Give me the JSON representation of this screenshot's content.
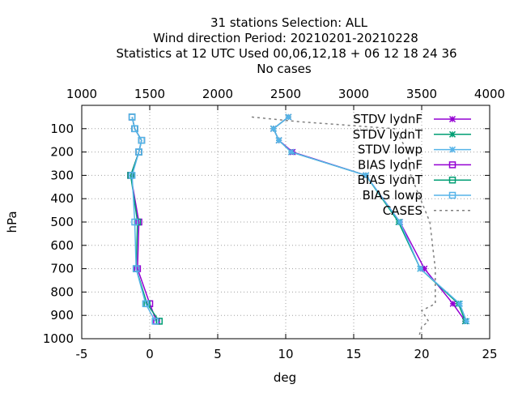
{
  "chart_data": {
    "type": "line",
    "title_lines": [
      "31 stations Selection: ALL",
      "Wind direction  Period: 20210201-20210228",
      "Statistics at 12 UTC  Used  00,06,12,18 + 06 12 18 24 36",
      "No cases"
    ],
    "xlabel": "deg",
    "ylabel": "hPa",
    "xlim": [
      -5,
      25
    ],
    "ylim": [
      1000,
      0
    ],
    "x2lim": [
      1000,
      4000
    ],
    "xticks": [
      "-5",
      "0",
      "5",
      "10",
      "15",
      "20",
      "25"
    ],
    "x2ticks": [
      "1000",
      "1500",
      "2000",
      "2500",
      "3000",
      "3500",
      "4000"
    ],
    "yticks": [
      "100",
      "200",
      "300",
      "400",
      "500",
      "600",
      "700",
      "800",
      "900",
      "1000"
    ],
    "grid": true,
    "legend_position": "top-right",
    "colors": {
      "lydnF": "#9400d3",
      "lydnT": "#009e73",
      "lowp": "#56b4e9",
      "cases": "#808080"
    },
    "series": [
      {
        "name": "STDV lydnF",
        "color": "#9400d3",
        "marker": "x",
        "values": [
          [
            10.2,
            50
          ],
          [
            9.1,
            100
          ],
          [
            9.5,
            150
          ],
          [
            10.5,
            200
          ],
          [
            15.9,
            300
          ],
          [
            18.4,
            500
          ],
          [
            20.2,
            700
          ],
          [
            22.3,
            850
          ],
          [
            23.2,
            925
          ]
        ]
      },
      {
        "name": "STDV lydnT",
        "color": "#009e73",
        "marker": "x",
        "values": [
          [
            10.2,
            50
          ],
          [
            9.1,
            100
          ],
          [
            9.5,
            150
          ],
          [
            10.4,
            200
          ],
          [
            15.9,
            300
          ],
          [
            18.3,
            500
          ],
          [
            19.9,
            700
          ],
          [
            22.7,
            850
          ],
          [
            23.2,
            925
          ]
        ]
      },
      {
        "name": "STDV lowp",
        "color": "#56b4e9",
        "marker": "x",
        "values": [
          [
            10.2,
            50
          ],
          [
            9.1,
            100
          ],
          [
            9.5,
            150
          ],
          [
            10.4,
            200
          ],
          [
            15.9,
            300
          ],
          [
            18.4,
            500
          ],
          [
            19.9,
            700
          ],
          [
            22.8,
            850
          ],
          [
            23.3,
            925
          ]
        ]
      },
      {
        "name": "BIAS lydnF",
        "color": "#9400d3",
        "marker": "square",
        "values": [
          [
            -1.3,
            50
          ],
          [
            -1.1,
            100
          ],
          [
            -0.6,
            150
          ],
          [
            -0.8,
            200
          ],
          [
            -1.4,
            300
          ],
          [
            -0.8,
            500
          ],
          [
            -0.9,
            700
          ],
          [
            0.0,
            850
          ],
          [
            0.5,
            925
          ]
        ]
      },
      {
        "name": "BIAS lydnT",
        "color": "#009e73",
        "marker": "square",
        "values": [
          [
            -1.3,
            50
          ],
          [
            -1.1,
            100
          ],
          [
            -0.6,
            150
          ],
          [
            -0.8,
            200
          ],
          [
            -1.4,
            300
          ],
          [
            -0.9,
            500
          ],
          [
            -1.0,
            700
          ],
          [
            -0.2,
            850
          ],
          [
            0.7,
            925
          ]
        ]
      },
      {
        "name": "BIAS lowp",
        "color": "#56b4e9",
        "marker": "square",
        "values": [
          [
            -1.3,
            50
          ],
          [
            -1.1,
            100
          ],
          [
            -0.6,
            150
          ],
          [
            -0.8,
            200
          ],
          [
            -1.3,
            300
          ],
          [
            -1.1,
            500
          ],
          [
            -1.0,
            700
          ],
          [
            -0.3,
            850
          ],
          [
            0.4,
            925
          ]
        ]
      },
      {
        "name": "CASES",
        "color": "#808080",
        "marker": "none",
        "dashed": true,
        "axis": "x2",
        "values": [
          [
            2250,
            50
          ],
          [
            2600,
            70
          ],
          [
            3300,
            100
          ],
          [
            3350,
            150
          ],
          [
            3400,
            200
          ],
          [
            3420,
            300
          ],
          [
            3560,
            500
          ],
          [
            3600,
            700
          ],
          [
            3600,
            850
          ],
          [
            3500,
            880
          ],
          [
            3550,
            925
          ],
          [
            3500,
            950
          ],
          [
            3480,
            990
          ]
        ]
      }
    ]
  }
}
